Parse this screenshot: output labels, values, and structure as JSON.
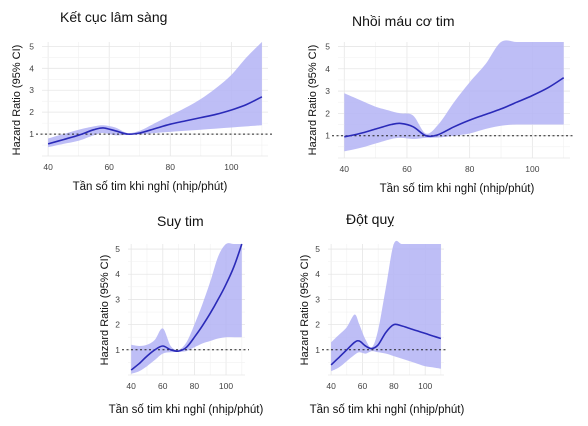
{
  "chart_data": [
    {
      "type": "line",
      "title": "Kết cục lâm sàng",
      "xlabel": "Tần số tim khi nghỉ (nhịp/phút)",
      "ylabel": "Hazard Ratio (95% CI)",
      "x_ticks": [
        40,
        60,
        80,
        100
      ],
      "y_ticks": [
        1,
        2,
        3,
        4,
        5
      ],
      "xlim": [
        38,
        112
      ],
      "ylim": [
        0,
        5.2
      ],
      "reference_line": 1,
      "grid": true,
      "series": [
        {
          "x": [
            40,
            45,
            50,
            55,
            58,
            62,
            66,
            70,
            75,
            80,
            85,
            90,
            95,
            100,
            105,
            110
          ],
          "y": [
            0.55,
            0.75,
            0.95,
            1.2,
            1.28,
            1.15,
            1.0,
            1.05,
            1.25,
            1.45,
            1.6,
            1.75,
            1.9,
            2.1,
            2.35,
            2.7
          ],
          "lo": [
            0.4,
            0.55,
            0.7,
            0.95,
            1.05,
            0.95,
            0.97,
            0.98,
            1.05,
            1.1,
            1.15,
            1.2,
            1.25,
            1.3,
            1.35,
            1.4
          ],
          "hi": [
            0.8,
            1.0,
            1.2,
            1.35,
            1.4,
            1.3,
            1.05,
            1.15,
            1.5,
            1.85,
            2.2,
            2.6,
            3.1,
            3.7,
            4.5,
            5.2
          ]
        }
      ]
    },
    {
      "type": "line",
      "title": "Nhồi máu cơ tim",
      "xlabel": "Tần số tim khi nghỉ (nhịp/phút)",
      "ylabel": "Hazard Ratio (95% CI)",
      "x_ticks": [
        40,
        60,
        80,
        100
      ],
      "y_ticks": [
        1,
        2,
        3,
        4,
        5
      ],
      "xlim": [
        38,
        112
      ],
      "ylim": [
        0,
        5.2
      ],
      "reference_line": 1,
      "grid": true,
      "series": [
        {
          "x": [
            40,
            45,
            50,
            55,
            58,
            62,
            66,
            70,
            75,
            80,
            85,
            90,
            95,
            100,
            105,
            110
          ],
          "y": [
            0.95,
            1.1,
            1.3,
            1.5,
            1.55,
            1.4,
            1.0,
            1.05,
            1.4,
            1.7,
            1.95,
            2.2,
            2.5,
            2.8,
            3.15,
            3.6
          ],
          "lo": [
            0.3,
            0.45,
            0.65,
            0.85,
            0.9,
            0.85,
            0.9,
            0.92,
            1.0,
            1.1,
            1.3,
            1.45,
            1.5,
            1.5,
            1.5,
            1.5
          ],
          "hi": [
            2.9,
            2.6,
            2.3,
            2.1,
            2.0,
            1.9,
            1.1,
            1.5,
            2.5,
            3.4,
            4.2,
            5.2,
            5.2,
            5.2,
            5.2,
            5.2
          ]
        }
      ]
    },
    {
      "type": "line",
      "title": "Suy tim",
      "xlabel": "Tần số tim khi nghỉ (nhịp/phút)",
      "ylabel": "Hazard Ratio (95% CI)",
      "x_ticks": [
        40,
        60,
        80,
        100
      ],
      "y_ticks": [
        1,
        2,
        3,
        4,
        5
      ],
      "xlim": [
        38,
        112
      ],
      "ylim": [
        0,
        5.2
      ],
      "reference_line": 1,
      "grid": true,
      "series": [
        {
          "x": [
            40,
            45,
            50,
            55,
            60,
            65,
            70,
            75,
            80,
            85,
            90,
            95,
            100,
            105,
            110
          ],
          "y": [
            0.2,
            0.45,
            0.75,
            1.0,
            1.15,
            1.0,
            0.95,
            1.1,
            1.5,
            1.95,
            2.45,
            3.0,
            3.6,
            4.3,
            5.2
          ],
          "lo": [
            0.05,
            0.15,
            0.35,
            0.6,
            0.85,
            0.9,
            0.92,
            0.95,
            1.1,
            1.25,
            1.35,
            1.45,
            1.5,
            1.5,
            1.5
          ],
          "hi": [
            1.2,
            1.15,
            1.2,
            1.4,
            1.85,
            1.15,
            1.0,
            1.3,
            2.0,
            2.8,
            3.7,
            4.7,
            5.2,
            5.2,
            5.2
          ]
        }
      ]
    },
    {
      "type": "line",
      "title": "Đột quỵ",
      "xlabel": "Tần số tim khi nghỉ (nhịp/phút)",
      "ylabel": "Hazard Ratio (95% CI)",
      "x_ticks": [
        40,
        60,
        80,
        100
      ],
      "y_ticks": [
        1,
        2,
        3,
        4,
        5
      ],
      "xlim": [
        38,
        112
      ],
      "ylim": [
        0,
        5.2
      ],
      "reference_line": 1,
      "grid": true,
      "series": [
        {
          "x": [
            40,
            45,
            50,
            55,
            58,
            62,
            66,
            70,
            75,
            80,
            85,
            90,
            95,
            100,
            105,
            110
          ],
          "y": [
            0.4,
            0.7,
            1.0,
            1.3,
            1.35,
            1.15,
            1.05,
            1.2,
            1.7,
            2.0,
            1.95,
            1.85,
            1.75,
            1.65,
            1.55,
            1.45
          ],
          "lo": [
            0.15,
            0.3,
            0.55,
            0.8,
            0.9,
            0.85,
            0.95,
            0.9,
            0.85,
            0.75,
            0.65,
            0.55,
            0.45,
            0.35,
            0.3,
            0.25
          ],
          "hi": [
            1.3,
            1.6,
            1.9,
            2.4,
            2.0,
            1.4,
            1.1,
            1.8,
            3.5,
            5.2,
            5.2,
            5.2,
            5.2,
            5.2,
            5.2,
            5.2
          ]
        }
      ]
    }
  ]
}
